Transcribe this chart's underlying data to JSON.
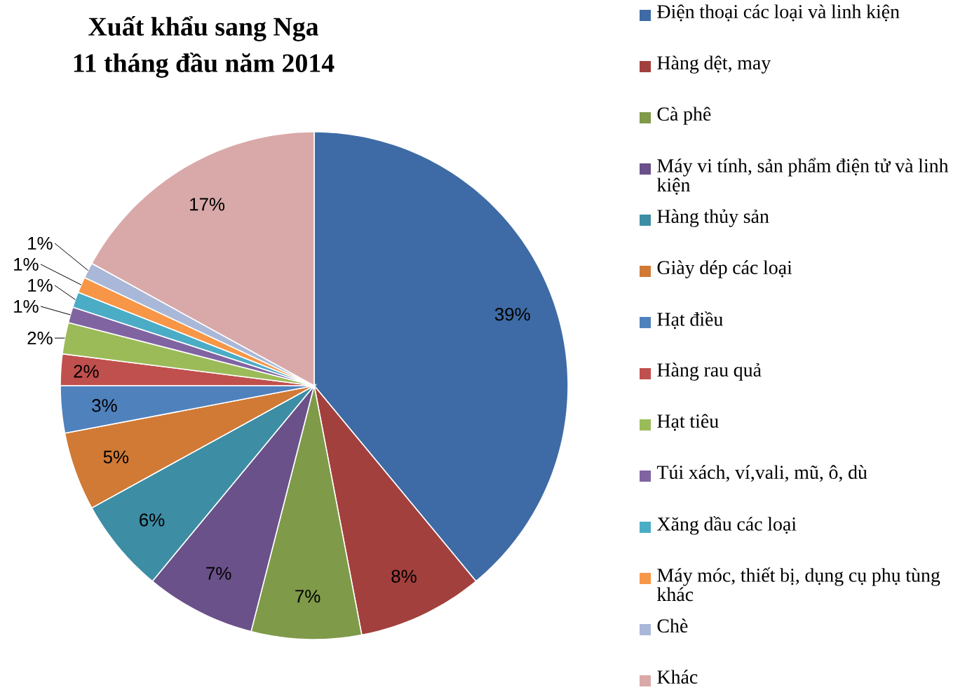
{
  "chart_data": {
    "type": "pie",
    "title": "Xuất khẩu sang Nga",
    "subtitle": "11 tháng đầu năm 2014",
    "categories": [
      "Điện thoại các loại và linh kiện",
      "Hàng dệt, may",
      "Cà phê",
      "Máy vi tính, sản phẩm điện tử và linh kiện",
      "Hàng thủy sản",
      "Giày dép các loại",
      "Hạt điều",
      "Hàng rau quả",
      "Hạt tiêu",
      "Túi xách, ví,vali, mũ, ô, dù",
      "Xăng dầu các loại",
      "Máy móc, thiết bị, dụng cụ phụ tùng khác",
      "Chè",
      "Khác"
    ],
    "values": [
      39,
      8,
      7,
      7,
      6,
      5,
      3,
      2,
      2,
      1,
      1,
      1,
      1,
      17
    ],
    "value_labels": [
      "39%",
      "8%",
      "7%",
      "7%",
      "6%",
      "5%",
      "3%",
      "2%",
      "2%",
      "1%",
      "1%",
      "1%",
      "1%",
      "17%"
    ],
    "colors": [
      "#3E6BA5",
      "#A2403D",
      "#7F9A48",
      "#6A5189",
      "#3D8DA4",
      "#D07A35",
      "#4F81BD",
      "#C0504D",
      "#9BBB59",
      "#8064A2",
      "#4BACC6",
      "#F79646",
      "#A9B8D8",
      "#D9A9A9"
    ],
    "legend": "right"
  }
}
